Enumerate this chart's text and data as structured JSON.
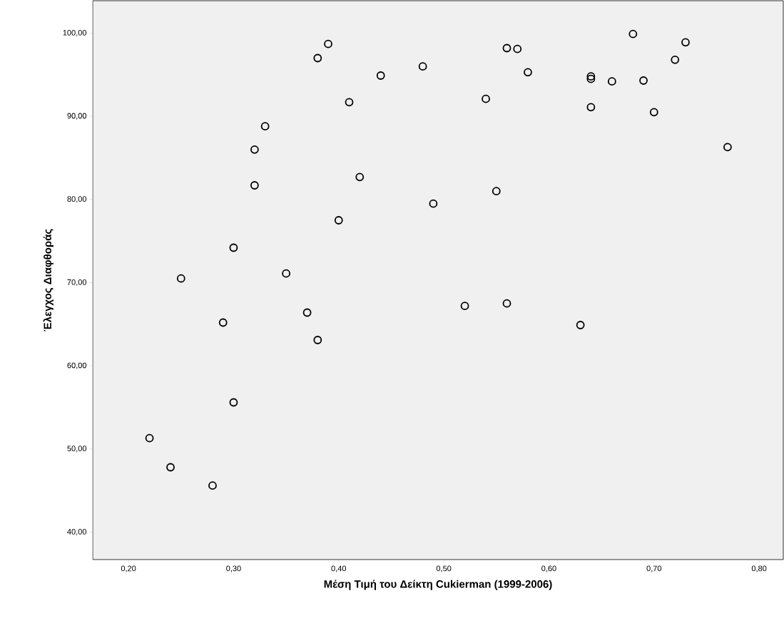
{
  "chart_data": {
    "type": "scatter",
    "xlabel": "Μέση Τιμή του Δείκτη Cukierman (1999-2006)",
    "ylabel": "Έλεγχος Διαφθοράς",
    "x": [
      0.22,
      0.24,
      0.28,
      0.3,
      0.29,
      0.25,
      0.3,
      0.32,
      0.32,
      0.33,
      0.35,
      0.37,
      0.38,
      0.38,
      0.39,
      0.4,
      0.41,
      0.42,
      0.44,
      0.48,
      0.49,
      0.52,
      0.54,
      0.55,
      0.56,
      0.56,
      0.57,
      0.58,
      0.63,
      0.64,
      0.64,
      0.64,
      0.66,
      0.68,
      0.69,
      0.7,
      0.72,
      0.73,
      0.77
    ],
    "values": [
      51.3,
      47.8,
      45.6,
      55.6,
      65.2,
      70.5,
      74.2,
      81.7,
      86.0,
      88.8,
      71.1,
      66.4,
      63.1,
      97.0,
      98.7,
      77.5,
      91.7,
      82.7,
      94.9,
      96.0,
      79.5,
      67.2,
      92.1,
      81.0,
      98.2,
      67.5,
      98.1,
      95.3,
      64.9,
      94.8,
      94.5,
      91.1,
      94.2,
      99.9,
      94.3,
      90.5,
      96.8,
      98.9,
      86.3
    ],
    "color": "#000000",
    "marker": "circle",
    "xlim": [
      0.166,
      0.823
    ],
    "ylim": [
      36.7,
      103.9
    ],
    "xticks": [
      {
        "value": 0.2,
        "label": "0,20"
      },
      {
        "value": 0.3,
        "label": "0,30"
      },
      {
        "value": 0.4,
        "label": "0,40"
      },
      {
        "value": 0.5,
        "label": "0,50"
      },
      {
        "value": 0.6,
        "label": "0,60"
      },
      {
        "value": 0.7,
        "label": "0,70"
      },
      {
        "value": 0.8,
        "label": "0,80"
      }
    ],
    "yticks": [
      {
        "value": 40,
        "label": "40,00"
      },
      {
        "value": 50,
        "label": "50,00"
      },
      {
        "value": 60,
        "label": "60,00"
      },
      {
        "value": 70,
        "label": "70,00"
      },
      {
        "value": 80,
        "label": "80,00"
      },
      {
        "value": 90,
        "label": "90,00"
      },
      {
        "value": 100,
        "label": "100,00"
      }
    ]
  }
}
